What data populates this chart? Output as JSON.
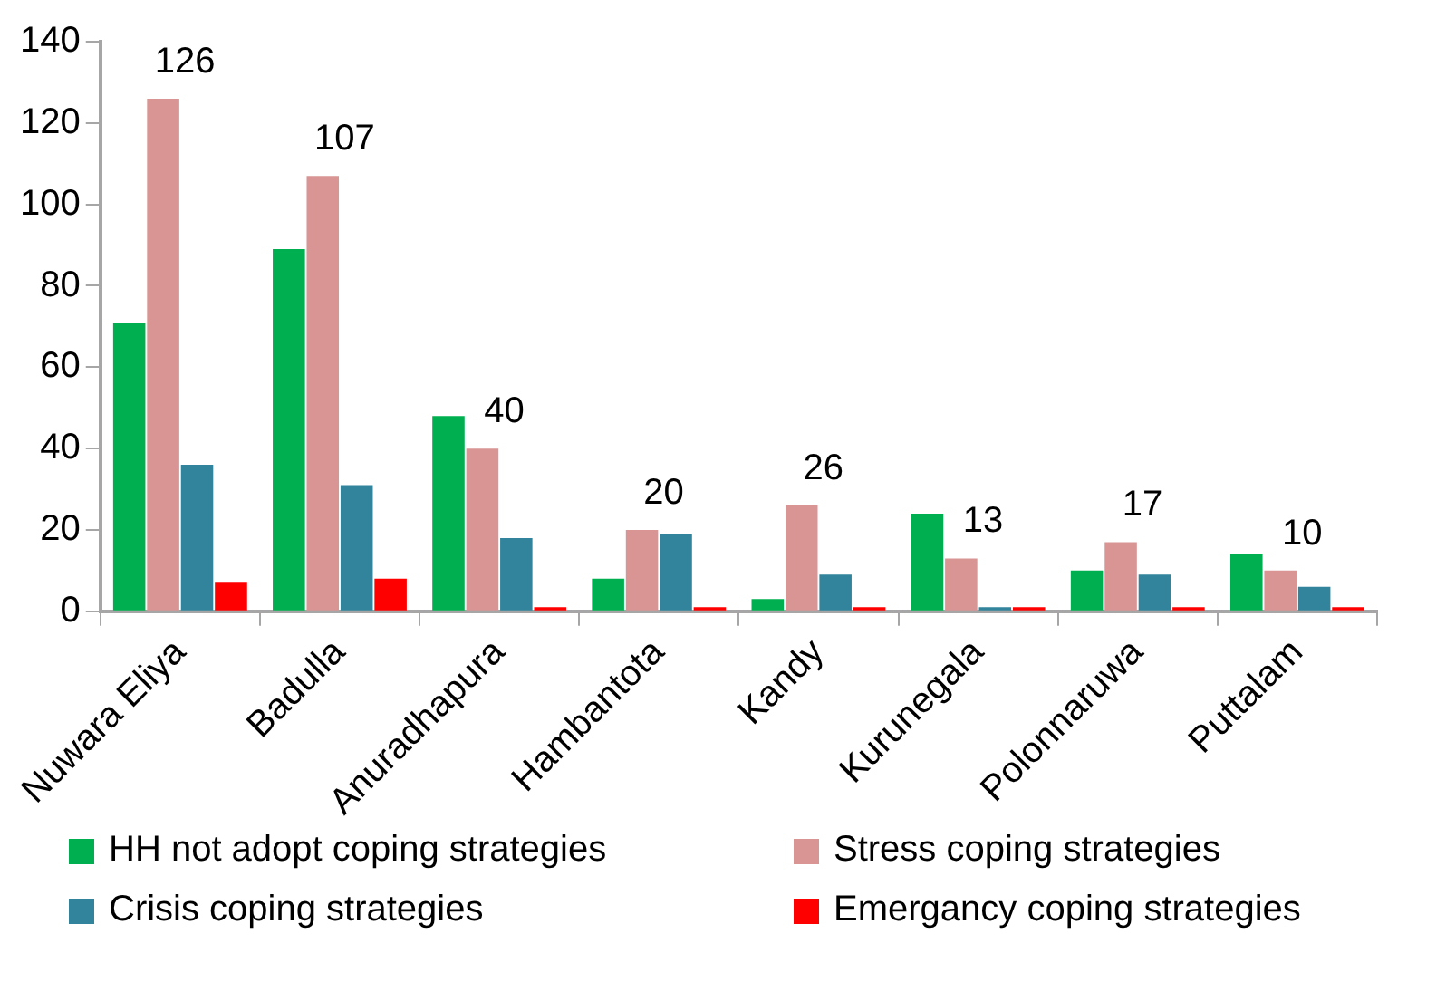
{
  "chart_data": {
    "type": "bar",
    "categories": [
      "Nuwara Eliya",
      "Badulla",
      "Anuradhapura",
      "Hambantota",
      "Kandy",
      "Kurunegala",
      "Polonnaruwa",
      "Puttalam"
    ],
    "series": [
      {
        "name": "HH not adopt coping strategies",
        "color": "#00b050",
        "values": [
          71,
          89,
          48,
          8,
          3,
          24,
          10,
          14
        ]
      },
      {
        "name": "Stress coping strategies",
        "color": "#d99594",
        "values": [
          126,
          107,
          40,
          20,
          26,
          13,
          17,
          10
        ],
        "value_labels": [
          "126",
          "107",
          "40",
          "20",
          "26",
          "13",
          "17",
          "10"
        ]
      },
      {
        "name": "Crisis coping strategies",
        "color": "#31849b",
        "values": [
          36,
          31,
          18,
          19,
          9,
          1,
          9,
          6
        ]
      },
      {
        "name": "Emergancy coping strategies",
        "color": "#ff0000",
        "values": [
          7,
          8,
          1,
          1,
          1,
          1,
          1,
          1
        ]
      }
    ],
    "ylim": [
      0,
      140
    ],
    "yticks": [
      0,
      20,
      40,
      60,
      80,
      100,
      120,
      140
    ],
    "grid": false,
    "legend": "bottom"
  }
}
